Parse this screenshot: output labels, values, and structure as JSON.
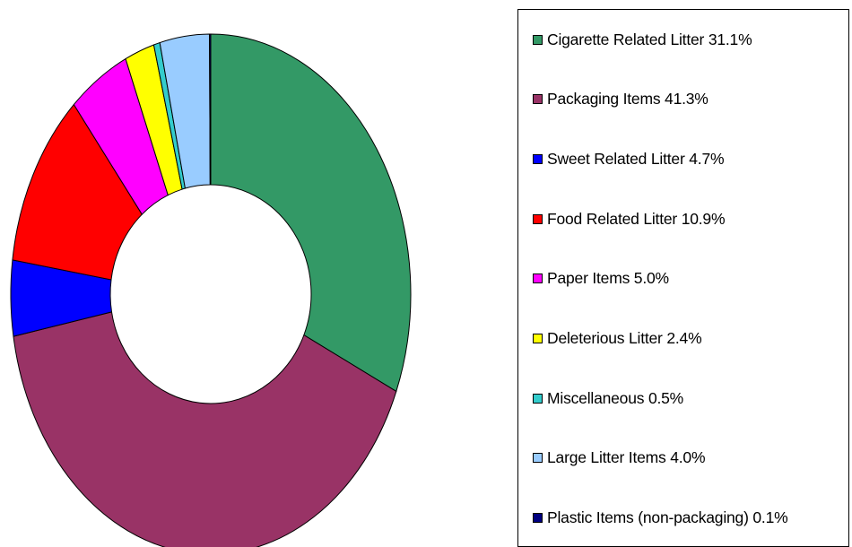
{
  "chart_data": {
    "type": "pie",
    "donut": true,
    "legend_placement": "right",
    "slices": [
      {
        "label": "Cigarette Related Litter",
        "value": 31.1,
        "color": "#339966",
        "legend_text": "Cigarette Related Litter 31.1%"
      },
      {
        "label": "Packaging Items",
        "value": 41.3,
        "color": "#993366",
        "legend_text": "Packaging Items 41.3%"
      },
      {
        "label": "Sweet Related Litter",
        "value": 4.7,
        "color": "#0000FF",
        "legend_text": "Sweet Related Litter 4.7%"
      },
      {
        "label": "Food Related Litter",
        "value": 10.9,
        "color": "#FF0000",
        "legend_text": "Food Related Litter 10.9%"
      },
      {
        "label": "Paper Items",
        "value": 5.0,
        "color": "#FF00FF",
        "legend_text": "Paper Items 5.0%"
      },
      {
        "label": "Deleterious Litter",
        "value": 2.4,
        "color": "#FFFF00",
        "legend_text": "Deleterious Litter 2.4%"
      },
      {
        "label": "Miscellaneous",
        "value": 0.5,
        "color": "#33CCCC",
        "legend_text": "Miscellaneous 0.5%"
      },
      {
        "label": "Large Litter Items",
        "value": 4.0,
        "color": "#99CCFF",
        "legend_text": "Large Litter Items 4.0%"
      },
      {
        "label": "Plastic Items (non-packaging)",
        "value": 0.1,
        "color": "#000080",
        "legend_text": "Plastic Items (non-packaging) 0.1%"
      }
    ]
  }
}
